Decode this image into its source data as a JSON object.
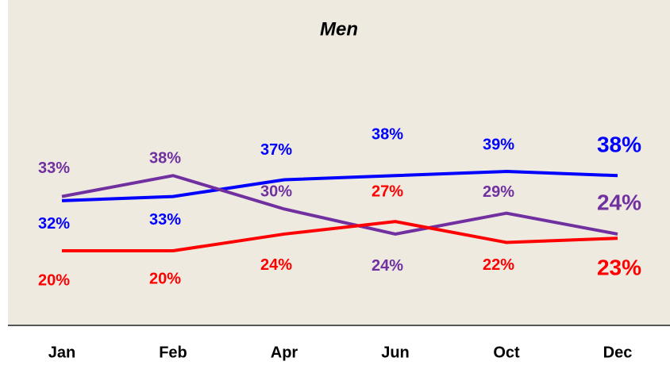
{
  "chart_data": {
    "type": "line",
    "title": "Men",
    "categories": [
      "Jan",
      "Feb",
      "Apr",
      "Jun",
      "Oct",
      "Dec"
    ],
    "series": [
      {
        "color": "#0000ff",
        "values": [
          32,
          33,
          37,
          38,
          39,
          38
        ],
        "value_labels": [
          "32%",
          "33%",
          "37%",
          "38%",
          "39%",
          "38%"
        ]
      },
      {
        "color": "#7030a0",
        "values": [
          33,
          38,
          30,
          24,
          29,
          24
        ],
        "value_labels": [
          "33%",
          "38%",
          "30%",
          "24%",
          "29%",
          "24%"
        ]
      },
      {
        "color": "#ff0000",
        "values": [
          20,
          20,
          24,
          27,
          22,
          23
        ],
        "value_labels": [
          "20%",
          "20%",
          "24%",
          "27%",
          "22%",
          "23%"
        ]
      }
    ]
  }
}
